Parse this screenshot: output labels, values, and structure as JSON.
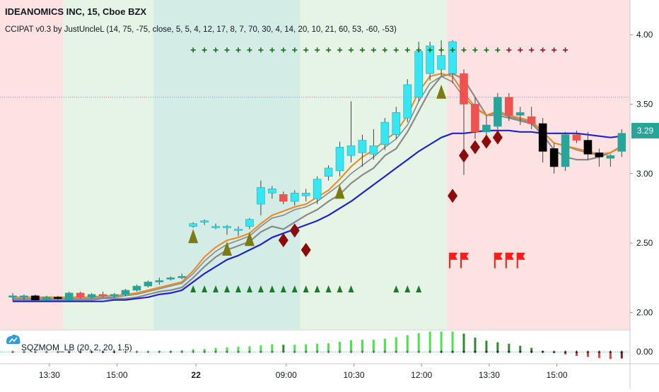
{
  "header": {
    "symbol_line": "IDEANOMICS INC, 15, Cboe BZX",
    "study_line": "CCIPAT v0.3 by JustUncleL (14, 75, -75, close, 5, 5, 4, 12, 17, 8, 7, 70, 30, 4, 14, 20, 10, 21, 60, 53, -60, -53)"
  },
  "sub_pane": {
    "study_label": "SQZMOM_LB (20, 2, 20, 1.5)",
    "zero_label": "0.00"
  },
  "last_price_badge": "3.29",
  "colors": {
    "bg_red": "#fde2e2",
    "bg_green": "#e6f4e6",
    "bg_teal": "#d3ece6",
    "bull": "#26a69a",
    "bull_alt": "#36e6f2",
    "bear": "#ef5350",
    "black": "#000000",
    "orange": "#f0861e",
    "gray": "#8a8a8a",
    "blue": "#1e22c8",
    "triangle_olive": "#7b7b10",
    "triangle_green": "#1b7a2a",
    "diamond": "#8b0a0a",
    "plus_green": "#1b6e1b",
    "plus_maroon": "#8b1a2a",
    "flag": "#ff1a1a"
  },
  "chart_data": {
    "type": "candlestick",
    "title": "IDEANOMICS INC, 15, Cboe BZX",
    "ylim": [
      1.88,
      4.25
    ],
    "y_ticks": [
      {
        "v": 2.0,
        "label": "2.00"
      },
      {
        "v": 2.5,
        "label": "2.50"
      },
      {
        "v": 3.0,
        "label": "3.00"
      },
      {
        "v": 3.5,
        "label": "3.50"
      },
      {
        "v": 4.0,
        "label": "4.00"
      }
    ],
    "x_ticks": [
      {
        "i": 3,
        "label": "13:30"
      },
      {
        "i": 9,
        "label": "15:00"
      },
      {
        "i": 16,
        "label": "22"
      },
      {
        "i": 24,
        "label": "09:00"
      },
      {
        "i": 30,
        "label": "10:30"
      },
      {
        "i": 36,
        "label": "12:00"
      },
      {
        "i": 42,
        "label": "13:30"
      },
      {
        "i": 48,
        "label": "15:00"
      }
    ],
    "hline": 3.55,
    "candles": [
      {
        "o": 2.12,
        "h": 2.14,
        "l": 2.08,
        "c": 2.11,
        "k": "bull"
      },
      {
        "o": 2.11,
        "h": 2.13,
        "l": 2.09,
        "c": 2.12,
        "k": "bull"
      },
      {
        "o": 2.12,
        "h": 2.13,
        "l": 2.08,
        "c": 2.09,
        "k": "black"
      },
      {
        "o": 2.09,
        "h": 2.12,
        "l": 2.08,
        "c": 2.11,
        "k": "bull"
      },
      {
        "o": 2.11,
        "h": 2.12,
        "l": 2.09,
        "c": 2.1,
        "k": "black"
      },
      {
        "o": 2.09,
        "h": 2.15,
        "l": 2.08,
        "c": 2.14,
        "k": "bull"
      },
      {
        "o": 2.14,
        "h": 2.15,
        "l": 2.1,
        "c": 2.11,
        "k": "bear"
      },
      {
        "o": 2.11,
        "h": 2.14,
        "l": 2.1,
        "c": 2.13,
        "k": "bull"
      },
      {
        "o": 2.13,
        "h": 2.15,
        "l": 2.11,
        "c": 2.12,
        "k": "bear"
      },
      {
        "o": 2.12,
        "h": 2.14,
        "l": 2.11,
        "c": 2.13,
        "k": "bull"
      },
      {
        "o": 2.13,
        "h": 2.17,
        "l": 2.12,
        "c": 2.16,
        "k": "bull"
      },
      {
        "o": 2.16,
        "h": 2.2,
        "l": 2.15,
        "c": 2.19,
        "k": "bull"
      },
      {
        "o": 2.19,
        "h": 2.23,
        "l": 2.18,
        "c": 2.22,
        "k": "bull"
      },
      {
        "o": 2.22,
        "h": 2.25,
        "l": 2.2,
        "c": 2.23,
        "k": "bull"
      },
      {
        "o": 2.24,
        "h": 2.26,
        "l": 2.23,
        "c": 2.25,
        "k": "bull"
      },
      {
        "o": 2.25,
        "h": 2.28,
        "l": 2.24,
        "c": 2.26,
        "k": "bull"
      },
      {
        "o": 2.62,
        "h": 2.65,
        "l": 2.61,
        "c": 2.64,
        "k": "bull_alt"
      },
      {
        "o": 2.65,
        "h": 2.67,
        "l": 2.63,
        "c": 2.66,
        "k": "bull_alt"
      },
      {
        "o": 2.62,
        "h": 2.64,
        "l": 2.6,
        "c": 2.61,
        "k": "bull_alt"
      },
      {
        "o": 2.61,
        "h": 2.63,
        "l": 2.56,
        "c": 2.62,
        "k": "bull_alt"
      },
      {
        "o": 2.6,
        "h": 2.62,
        "l": 2.55,
        "c": 2.59,
        "k": "bull_alt"
      },
      {
        "o": 2.62,
        "h": 2.68,
        "l": 2.6,
        "c": 2.67,
        "k": "bull_alt"
      },
      {
        "o": 2.78,
        "h": 2.95,
        "l": 2.7,
        "c": 2.9,
        "k": "bull_alt"
      },
      {
        "o": 2.86,
        "h": 2.91,
        "l": 2.82,
        "c": 2.89,
        "k": "bull_alt"
      },
      {
        "o": 2.85,
        "h": 2.87,
        "l": 2.78,
        "c": 2.8,
        "k": "bear"
      },
      {
        "o": 2.8,
        "h": 2.88,
        "l": 2.77,
        "c": 2.86,
        "k": "bull_alt"
      },
      {
        "o": 2.86,
        "h": 2.89,
        "l": 2.8,
        "c": 2.84,
        "k": "bull_alt"
      },
      {
        "o": 2.82,
        "h": 2.98,
        "l": 2.78,
        "c": 2.96,
        "k": "bull_alt"
      },
      {
        "o": 2.98,
        "h": 3.06,
        "l": 2.95,
        "c": 3.04,
        "k": "bull_alt"
      },
      {
        "o": 3.02,
        "h": 3.23,
        "l": 2.98,
        "c": 3.19,
        "k": "bull_alt"
      },
      {
        "o": 3.13,
        "h": 3.52,
        "l": 3.08,
        "c": 3.2,
        "k": "bull_alt"
      },
      {
        "o": 3.15,
        "h": 3.28,
        "l": 3.05,
        "c": 3.24,
        "k": "bull_alt"
      },
      {
        "o": 3.2,
        "h": 3.32,
        "l": 3.1,
        "c": 3.14,
        "k": "bull_alt"
      },
      {
        "o": 3.21,
        "h": 3.4,
        "l": 3.17,
        "c": 3.37,
        "k": "bull_alt"
      },
      {
        "o": 3.28,
        "h": 3.48,
        "l": 3.25,
        "c": 3.44,
        "k": "bull_alt"
      },
      {
        "o": 3.4,
        "h": 3.68,
        "l": 3.37,
        "c": 3.64,
        "k": "bull_alt"
      },
      {
        "o": 3.55,
        "h": 3.95,
        "l": 3.52,
        "c": 3.88,
        "k": "bull_alt"
      },
      {
        "o": 3.72,
        "h": 3.95,
        "l": 3.67,
        "c": 3.92,
        "k": "bull_alt"
      },
      {
        "o": 3.75,
        "h": 3.96,
        "l": 3.7,
        "c": 3.85,
        "k": "bull_alt"
      },
      {
        "o": 3.95,
        "h": 3.96,
        "l": 3.65,
        "c": 3.72,
        "k": "bull_alt"
      },
      {
        "o": 3.72,
        "h": 3.75,
        "l": 2.99,
        "c": 3.5,
        "k": "bear"
      },
      {
        "o": 3.5,
        "h": 3.55,
        "l": 3.25,
        "c": 3.3,
        "k": "bear"
      },
      {
        "o": 3.3,
        "h": 3.42,
        "l": 3.22,
        "c": 3.35,
        "k": "bull"
      },
      {
        "o": 3.34,
        "h": 3.58,
        "l": 3.3,
        "c": 3.55,
        "k": "bull"
      },
      {
        "o": 3.55,
        "h": 3.58,
        "l": 3.38,
        "c": 3.42,
        "k": "bear"
      },
      {
        "o": 3.42,
        "h": 3.48,
        "l": 3.35,
        "c": 3.44,
        "k": "bull"
      },
      {
        "o": 3.41,
        "h": 3.48,
        "l": 3.32,
        "c": 3.36,
        "k": "bear"
      },
      {
        "o": 3.36,
        "h": 3.4,
        "l": 3.08,
        "c": 3.16,
        "k": "black"
      },
      {
        "o": 3.18,
        "h": 3.22,
        "l": 3.0,
        "c": 3.05,
        "k": "black"
      },
      {
        "o": 3.05,
        "h": 3.3,
        "l": 3.02,
        "c": 3.28,
        "k": "bull"
      },
      {
        "o": 3.28,
        "h": 3.31,
        "l": 3.22,
        "c": 3.24,
        "k": "bear"
      },
      {
        "o": 3.24,
        "h": 3.3,
        "l": 3.1,
        "c": 3.14,
        "k": "black"
      },
      {
        "o": 3.15,
        "h": 3.18,
        "l": 3.05,
        "c": 3.12,
        "k": "black"
      },
      {
        "o": 3.11,
        "h": 3.14,
        "l": 3.05,
        "c": 3.13,
        "k": "bull"
      },
      {
        "o": 3.16,
        "h": 3.32,
        "l": 3.12,
        "c": 3.29,
        "k": "bull"
      }
    ],
    "ema_fast": [
      2.11,
      2.11,
      2.11,
      2.11,
      2.11,
      2.11,
      2.11,
      2.11,
      2.12,
      2.12,
      2.13,
      2.14,
      2.16,
      2.18,
      2.2,
      2.22,
      2.3,
      2.4,
      2.47,
      2.52,
      2.54,
      2.57,
      2.64,
      2.7,
      2.73,
      2.76,
      2.78,
      2.83,
      2.88,
      2.96,
      3.05,
      3.12,
      3.17,
      3.24,
      3.3,
      3.42,
      3.59,
      3.7,
      3.72,
      3.7,
      3.58,
      3.48,
      3.42,
      3.45,
      3.42,
      3.4,
      3.38,
      3.3,
      3.22,
      3.2,
      3.18,
      3.16,
      3.14,
      3.15,
      3.2
    ],
    "ema_mid": [
      2.1,
      2.1,
      2.1,
      2.1,
      2.1,
      2.1,
      2.1,
      2.1,
      2.11,
      2.11,
      2.12,
      2.13,
      2.15,
      2.17,
      2.19,
      2.21,
      2.28,
      2.37,
      2.44,
      2.49,
      2.52,
      2.55,
      2.62,
      2.68,
      2.7,
      2.74,
      2.76,
      2.8,
      2.86,
      2.92,
      3.0,
      3.06,
      3.12,
      3.19,
      3.25,
      3.35,
      3.52,
      3.65,
      3.7,
      3.66,
      3.55,
      3.47,
      3.42,
      3.44,
      3.41,
      3.39,
      3.37,
      3.3,
      3.22,
      3.2,
      3.17,
      3.15,
      3.13,
      3.15,
      3.19
    ],
    "ema_slow": [
      2.09,
      2.09,
      2.09,
      2.09,
      2.09,
      2.09,
      2.09,
      2.09,
      2.1,
      2.1,
      2.1,
      2.11,
      2.13,
      2.15,
      2.16,
      2.18,
      2.25,
      2.33,
      2.4,
      2.45,
      2.48,
      2.51,
      2.58,
      2.62,
      2.6,
      2.65,
      2.7,
      2.74,
      2.8,
      2.85,
      2.93,
      2.99,
      3.04,
      3.13,
      3.18,
      3.3,
      3.45,
      3.6,
      3.7,
      3.72,
      3.68,
      3.55,
      3.42,
      3.42,
      3.4,
      3.38,
      3.36,
      3.28,
      3.17,
      3.12,
      3.1,
      3.1,
      3.12,
      3.15,
      3.2
    ],
    "ema_trend": [
      2.08,
      2.08,
      2.08,
      2.08,
      2.08,
      2.08,
      2.08,
      2.08,
      2.08,
      2.09,
      2.09,
      2.1,
      2.11,
      2.13,
      2.14,
      2.16,
      2.22,
      2.28,
      2.33,
      2.38,
      2.41,
      2.45,
      2.49,
      2.54,
      2.57,
      2.6,
      2.63,
      2.66,
      2.7,
      2.75,
      2.8,
      2.86,
      2.92,
      2.98,
      3.04,
      3.1,
      3.16,
      3.21,
      3.26,
      3.29,
      3.29,
      3.3,
      3.31,
      3.31,
      3.31,
      3.3,
      3.3,
      3.29,
      3.29,
      3.29,
      3.29,
      3.28,
      3.27,
      3.26,
      3.27
    ],
    "signals": {
      "triangles_up": [
        {
          "i": 16,
          "v": 2.55
        },
        {
          "i": 19,
          "v": 2.46
        },
        {
          "i": 21,
          "v": 2.53
        },
        {
          "i": 29,
          "v": 2.87
        },
        {
          "i": 38,
          "v": 3.59
        }
      ],
      "diamonds": [
        {
          "i": 24,
          "v": 2.52
        },
        {
          "i": 25,
          "v": 2.59
        },
        {
          "i": 26,
          "v": 2.45
        },
        {
          "i": 39,
          "v": 2.84
        },
        {
          "i": 40,
          "v": 3.13
        },
        {
          "i": 41,
          "v": 3.19
        },
        {
          "i": 42,
          "v": 3.23
        },
        {
          "i": 43,
          "v": 3.26
        }
      ],
      "bottom_triangles": [
        16,
        17,
        18,
        19,
        20,
        21,
        22,
        23,
        24,
        25,
        26,
        27,
        28,
        29,
        30,
        34,
        35,
        36
      ],
      "bottom_triangle_level": 2.17,
      "plus_green": [
        16,
        17,
        18,
        19,
        20,
        21,
        22,
        23,
        24,
        25,
        26,
        27,
        28,
        29,
        30,
        31,
        32,
        33,
        34,
        35,
        36,
        37,
        38,
        39,
        40,
        41,
        42,
        43
      ],
      "plus_maroon": [
        44,
        45,
        46,
        47,
        48,
        49
      ],
      "plus_level": 3.89,
      "flags": [
        39,
        40,
        43,
        44,
        45
      ],
      "flag_level": 2.38
    },
    "background_zones": [
      {
        "from": 0,
        "to": 5,
        "c": "red"
      },
      {
        "from": 5,
        "to": 13,
        "c": "green"
      },
      {
        "from": 13,
        "to": 26,
        "c": "teal"
      },
      {
        "from": 26,
        "to": 39,
        "c": "green"
      },
      {
        "from": 39,
        "to": 55,
        "c": "red"
      }
    ],
    "momentum": [
      -0.01,
      -0.01,
      -0.01,
      -0.01,
      -0.01,
      -0.01,
      -0.01,
      -0.01,
      -0.01,
      -0.005,
      0.005,
      0.01,
      0.01,
      0.02,
      0.02,
      0.03,
      0.05,
      0.06,
      0.08,
      0.09,
      0.1,
      0.11,
      0.13,
      0.15,
      0.14,
      0.14,
      0.15,
      0.16,
      0.17,
      0.2,
      0.23,
      0.24,
      0.24,
      0.26,
      0.29,
      0.33,
      0.37,
      0.4,
      0.4,
      0.4,
      0.36,
      0.28,
      0.22,
      0.19,
      0.16,
      0.12,
      0.08,
      0.02,
      -0.02,
      -0.05,
      -0.08,
      -0.1,
      -0.12,
      -0.14,
      -0.13
    ],
    "momentum_range": [
      -0.22,
      0.42
    ]
  }
}
